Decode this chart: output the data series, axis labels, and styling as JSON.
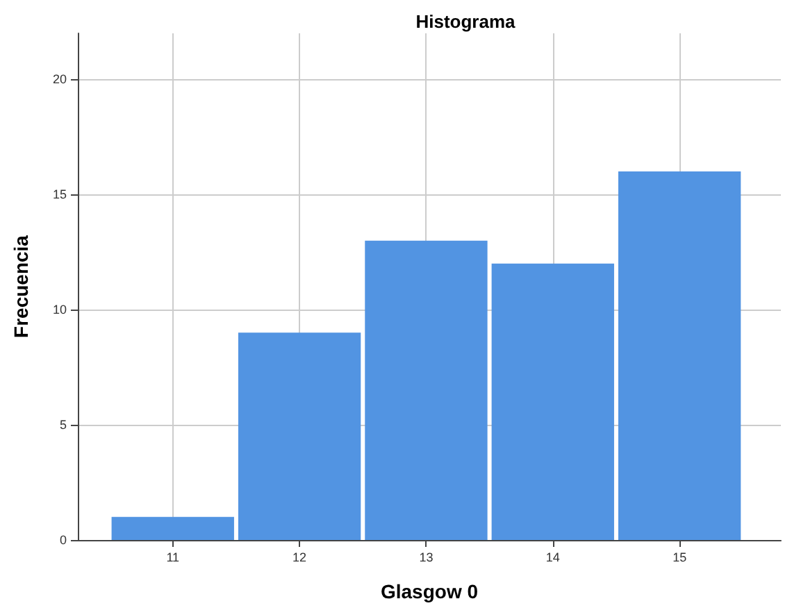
{
  "chart_data": {
    "type": "histogram",
    "title": "Histograma",
    "xlabel": "Glasgow 0",
    "ylabel": "Frecuencia",
    "bins": [
      10.5,
      11.5,
      12.5,
      13.5,
      14.5,
      15.5
    ],
    "values": [
      1,
      9,
      13,
      12,
      16
    ],
    "color": "#5294e2",
    "xlim": [
      10.25,
      15.8
    ],
    "xticks": [
      11,
      12,
      13,
      14,
      15
    ],
    "ylim": [
      0,
      22
    ],
    "yticks": [
      0,
      5,
      10,
      15,
      20
    ],
    "grid": true
  }
}
